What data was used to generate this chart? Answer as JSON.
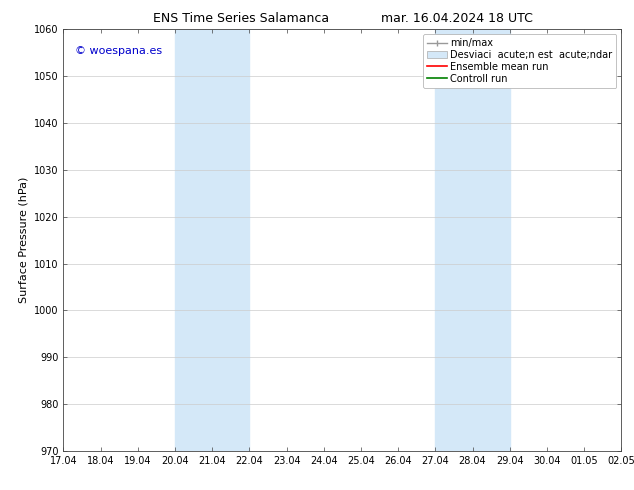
{
  "title_left": "ENS Time Series Salamanca",
  "title_right": "mar. 16.04.2024 18 UTC",
  "ylabel": "Surface Pressure (hPa)",
  "ylim": [
    970,
    1060
  ],
  "yticks": [
    970,
    980,
    990,
    1000,
    1010,
    1020,
    1030,
    1040,
    1050,
    1060
  ],
  "xtick_labels": [
    "17.04",
    "18.04",
    "19.04",
    "20.04",
    "21.04",
    "22.04",
    "23.04",
    "24.04",
    "25.04",
    "26.04",
    "27.04",
    "28.04",
    "29.04",
    "30.04",
    "01.05",
    "02.05"
  ],
  "xtick_positions": [
    0,
    1,
    2,
    3,
    4,
    5,
    6,
    7,
    8,
    9,
    10,
    11,
    12,
    13,
    14,
    15
  ],
  "shaded_regions": [
    {
      "x_start": 3,
      "x_end": 5,
      "color": "#d4e8f8"
    },
    {
      "x_start": 10,
      "x_end": 12,
      "color": "#d4e8f8"
    }
  ],
  "watermark_text": "© woespana.es",
  "watermark_color": "#0000cc",
  "bg_color": "#ffffff",
  "plot_bg_color": "#ffffff",
  "grid_color": "#cccccc",
  "title_fontsize": 9,
  "tick_fontsize": 7,
  "ylabel_fontsize": 8,
  "legend_fontsize": 7,
  "watermark_fontsize": 8
}
